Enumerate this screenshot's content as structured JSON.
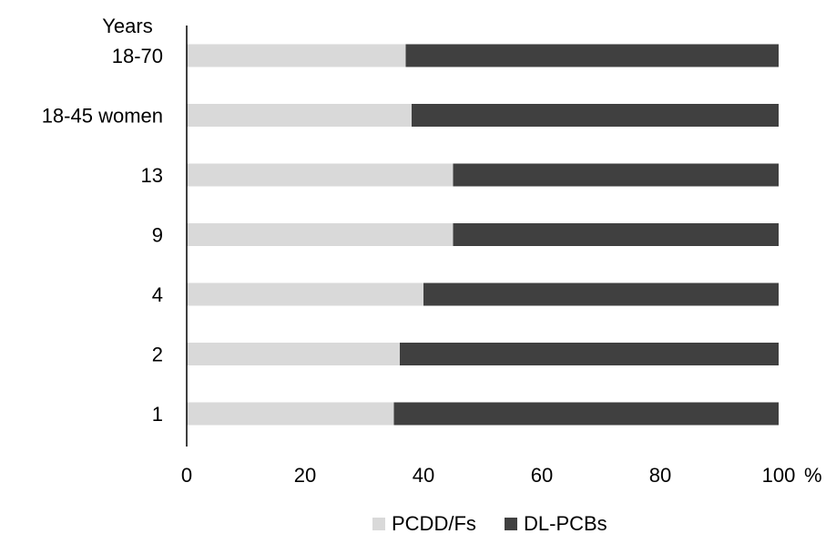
{
  "chart_data": {
    "type": "bar",
    "orientation": "horizontal",
    "stacked": true,
    "ylabel": "Years",
    "xlabel": "%",
    "categories": [
      "18-70",
      "18-45 women",
      "13",
      "9",
      "4",
      "2",
      "1"
    ],
    "series": [
      {
        "name": "PCDD/Fs",
        "color": "#d9d9d9",
        "values": [
          37,
          38,
          45,
          45,
          40,
          36,
          35
        ]
      },
      {
        "name": "DL-PCBs",
        "color": "#404040",
        "values": [
          63,
          62,
          55,
          55,
          60,
          64,
          65
        ]
      }
    ],
    "xlim": [
      0,
      100
    ],
    "xticks": [
      "0",
      "20",
      "40",
      "60",
      "80",
      "100"
    ],
    "grid": false,
    "legend_position": "bottom"
  }
}
